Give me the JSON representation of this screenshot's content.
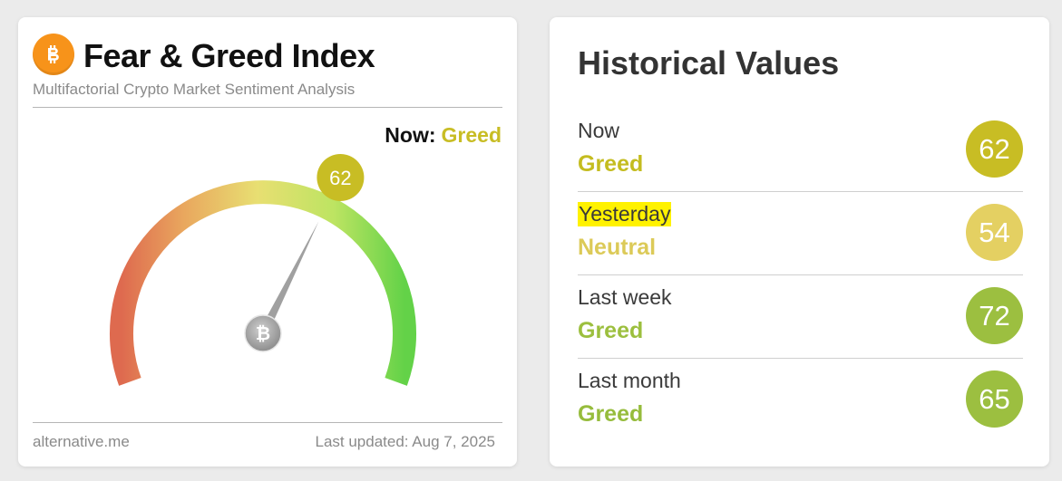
{
  "gauge_card": {
    "title": "Fear & Greed Index",
    "subtitle": "Multifactorial Crypto Market Sentiment Analysis",
    "now_label": "Now:",
    "now_class": "Greed",
    "value": 62,
    "value_text": "62",
    "scale_max": 100,
    "footer_source": "alternative.me",
    "footer_updated": "Last updated: Aug 7, 2025",
    "logo_icon": "bitcoin-icon",
    "colors": {
      "logo": "#f7931a",
      "gauge_fear": "#de6a4f",
      "gauge_neutral": "#e4d870",
      "gauge_greed": "#6cd449",
      "bubble": "#c8bd24",
      "needle": "#a0a0a0"
    }
  },
  "history": {
    "title": "Historical Values",
    "rows": [
      {
        "label": "Now",
        "classification": "Greed",
        "value": "62",
        "class_color": "#c4bc1f",
        "bubble_color": "#c8bd24",
        "highlighted": false
      },
      {
        "label": "Yesterday",
        "classification": "Neutral",
        "value": "54",
        "class_color": "#dcca58",
        "bubble_color": "#e4d062",
        "highlighted": true
      },
      {
        "label": "Last week",
        "classification": "Greed",
        "value": "72",
        "class_color": "#9cbf3e",
        "bubble_color": "#9cbf40",
        "highlighted": false
      },
      {
        "label": "Last month",
        "classification": "Greed",
        "value": "65",
        "class_color": "#96bc3c",
        "bubble_color": "#9cbf40",
        "highlighted": false
      }
    ],
    "highlight_color": "#fff200"
  }
}
